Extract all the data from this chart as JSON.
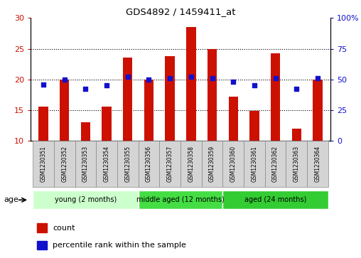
{
  "title": "GDS4892 / 1459411_at",
  "samples": [
    "GSM1230351",
    "GSM1230352",
    "GSM1230353",
    "GSM1230354",
    "GSM1230355",
    "GSM1230356",
    "GSM1230357",
    "GSM1230358",
    "GSM1230359",
    "GSM1230360",
    "GSM1230361",
    "GSM1230362",
    "GSM1230363",
    "GSM1230364"
  ],
  "counts": [
    15.5,
    20.0,
    13.0,
    15.5,
    23.5,
    20.0,
    23.8,
    28.5,
    25.0,
    17.2,
    14.8,
    24.2,
    12.0,
    20.0
  ],
  "percentiles": [
    46,
    50,
    42,
    45,
    52,
    50,
    51,
    52,
    51,
    48,
    45,
    51,
    42,
    51
  ],
  "ylim_left": [
    10,
    30
  ],
  "ylim_right": [
    0,
    100
  ],
  "yticks_left": [
    10,
    15,
    20,
    25,
    30
  ],
  "ytick_labels_left": [
    "10",
    "15",
    "20",
    "25",
    "30"
  ],
  "yticks_right": [
    0,
    25,
    50,
    75,
    100
  ],
  "ytick_labels_right": [
    "0",
    "25",
    "50",
    "75",
    "100%"
  ],
  "bar_color": "#cc1100",
  "dot_color": "#1111cc",
  "bar_bottom": 10,
  "bar_width": 0.45,
  "gridlines": [
    15,
    20,
    25
  ],
  "groups": [
    {
      "label": "young (2 months)",
      "start": 0,
      "end": 5,
      "color": "#ccffcc"
    },
    {
      "label": "middle aged (12 months)",
      "start": 5,
      "end": 9,
      "color": "#44dd44"
    },
    {
      "label": "aged (24 months)",
      "start": 9,
      "end": 14,
      "color": "#33cc33"
    }
  ],
  "group_label": "age",
  "legend_count_label": "count",
  "legend_percentile_label": "percentile rank within the sample",
  "background_color": "#ffffff",
  "tickbox_color": "#d4d4d4",
  "tickbox_edge": "#888888",
  "dot_size": 18
}
